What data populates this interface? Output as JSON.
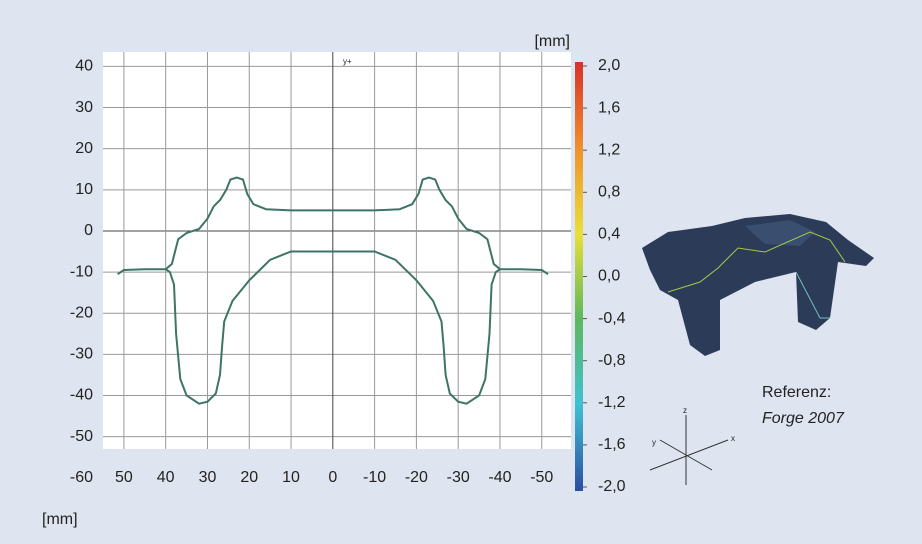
{
  "chart_data": {
    "type": "line",
    "axis_marker": "y+",
    "x_label": "[mm]",
    "xlim": [
      55,
      -57
    ],
    "ylim": [
      -53,
      43.5
    ],
    "xticks": [
      50,
      40,
      30,
      20,
      10,
      0,
      -10,
      -20,
      -30,
      -40,
      -50
    ],
    "yticks": [
      40,
      30,
      20,
      10,
      0,
      -10,
      -20,
      -30,
      -40,
      -50,
      -60
    ],
    "grid": true,
    "series": [
      {
        "color": "#3d7467",
        "x": [
          51.5,
          50,
          45,
          40,
          38.5,
          37,
          35,
          32,
          30,
          28.5,
          27,
          25.5,
          24.5,
          23,
          21.5,
          20.5,
          19,
          16,
          10,
          0,
          -10,
          -16,
          -19,
          -20.5,
          -21.5,
          -23,
          -24.5,
          -25.5,
          -27,
          -28.5,
          -30,
          -32,
          -35,
          -37,
          -38.5,
          -40,
          -45,
          -50,
          -51.5
        ],
        "values": [
          -10.5,
          -9.5,
          -9.3,
          -9.3,
          -8,
          -2,
          -0.5,
          0.5,
          3,
          6,
          7.5,
          10,
          12.5,
          13,
          12.5,
          9,
          6.5,
          5.3,
          5,
          5,
          5,
          5.3,
          6.5,
          9,
          12.5,
          13,
          12.5,
          10,
          7.5,
          6,
          3,
          0.5,
          -0.5,
          -2,
          -8,
          -9.3,
          -9.3,
          -9.5,
          -10.5
        ]
      },
      {
        "color": "#3d7467",
        "x": [
          40,
          39,
          38,
          37.5,
          36.5,
          35,
          32,
          30,
          28,
          27,
          26.5,
          26,
          24,
          20,
          15,
          10,
          0,
          -10,
          -15,
          -20,
          -24,
          -26,
          -26.5,
          -27,
          -28,
          -30,
          -32,
          -35,
          -36.5,
          -37.5,
          -38,
          -39,
          -40
        ],
        "values": [
          -9.3,
          -10,
          -13,
          -25,
          -36,
          -40,
          -42,
          -41.5,
          -39.5,
          -35,
          -28,
          -22,
          -17,
          -12,
          -7,
          -5,
          -5,
          -5,
          -7,
          -12,
          -17,
          -22,
          -28,
          -35,
          -39.5,
          -41.5,
          -42,
          -40,
          -36,
          -25,
          -13,
          -10,
          -9.3
        ]
      }
    ],
    "colorbar": {
      "label": "[mm]",
      "ylim": [
        -2.0,
        2.0
      ],
      "colors": [
        "#d8302b",
        "#f0902b",
        "#e9df3a",
        "#5cb85c",
        "#3ec1d3",
        "#2c4da0"
      ],
      "ticks": [
        {
          "value": 2.0,
          "label": "2,0"
        },
        {
          "value": 1.6,
          "label": "1,6"
        },
        {
          "value": 1.2,
          "label": "1,2"
        },
        {
          "value": 0.8,
          "label": "0,8"
        },
        {
          "value": 0.4,
          "label": "0,4"
        },
        {
          "value": 0.0,
          "label": "0,0"
        },
        {
          "value": -0.4,
          "label": "-0,4"
        },
        {
          "value": -0.8,
          "label": "-0,8"
        },
        {
          "value": -1.2,
          "label": "-1,2"
        },
        {
          "value": -1.6,
          "label": "-1,6"
        },
        {
          "value": -2.0,
          "label": "-2,0"
        }
      ]
    },
    "reference": {
      "label": "Referenz:",
      "name": "Forge 2007"
    },
    "triad": {
      "x": "x",
      "y": "y",
      "z": "z"
    }
  }
}
